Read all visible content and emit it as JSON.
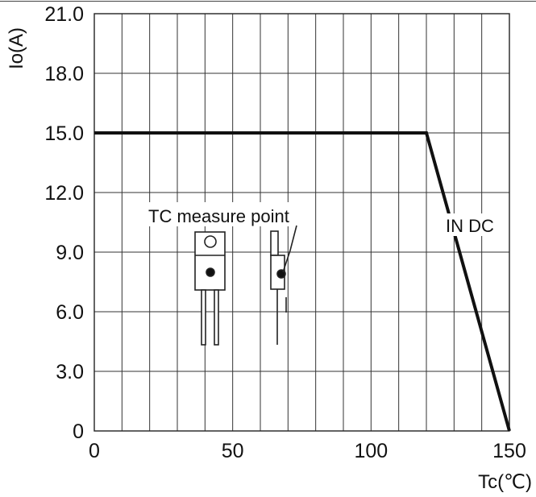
{
  "chart_data": {
    "type": "line",
    "ylabel": "Io(A)",
    "xlabel": "Tc(℃)",
    "xlim": [
      0,
      150
    ],
    "ylim": [
      0,
      21
    ],
    "xticks": [
      0,
      50,
      100,
      150
    ],
    "yticks": [
      0,
      3.0,
      6.0,
      9.0,
      12.0,
      15.0,
      18.0,
      21.0
    ],
    "xtick_labels": [
      "0",
      "50",
      "100",
      "150"
    ],
    "ytick_labels": [
      "0",
      "3.0",
      "6.0",
      "9.0",
      "12.0",
      "15.0",
      "18.0",
      "21.0"
    ],
    "grid": true,
    "grid_x_step": 10,
    "series": [
      {
        "x": [
          0,
          120,
          150
        ],
        "y": [
          15.0,
          15.0,
          0
        ]
      }
    ],
    "annotations": {
      "tc_point": "TC measure point",
      "curve": "IN DC"
    }
  }
}
